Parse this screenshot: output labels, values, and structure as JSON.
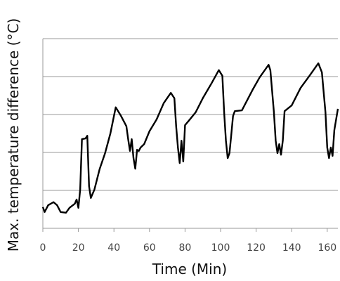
{
  "chart_data": {
    "type": "line",
    "xlabel": "Time (Min)",
    "ylabel": "Max. temperature difference (°C)",
    "x": [
      0,
      1,
      3,
      6,
      8,
      10,
      13,
      15,
      18,
      19,
      20,
      21,
      22,
      24,
      25,
      26,
      27,
      29,
      32,
      35,
      38,
      41,
      44,
      47,
      48,
      49,
      50,
      51,
      52,
      53,
      54,
      55,
      57,
      60,
      64,
      68,
      72,
      74,
      75,
      76,
      77,
      78,
      79,
      80,
      82,
      86,
      90,
      95,
      99,
      101,
      102,
      103,
      104,
      105,
      106,
      107,
      108,
      112,
      118,
      122,
      127,
      128,
      130,
      131,
      132,
      133,
      134,
      135,
      136,
      140,
      145,
      150,
      155,
      157,
      159,
      160,
      161,
      162,
      163,
      164,
      166
    ],
    "series": [
      {
        "color": "#000000",
        "values": [
          0.56,
          0.43,
          0.61,
          0.69,
          0.61,
          0.43,
          0.41,
          0.54,
          0.65,
          0.76,
          0.54,
          1.02,
          2.35,
          2.37,
          2.44,
          1.11,
          0.8,
          1.02,
          1.57,
          1.98,
          2.5,
          3.19,
          2.96,
          2.69,
          2.35,
          2.04,
          2.35,
          1.85,
          1.57,
          2.07,
          2.04,
          2.13,
          2.22,
          2.56,
          2.87,
          3.3,
          3.57,
          3.43,
          2.69,
          2.13,
          1.72,
          2.31,
          1.76,
          2.72,
          2.83,
          3.06,
          3.43,
          3.83,
          4.17,
          4.02,
          3.06,
          2.31,
          1.85,
          1.98,
          2.46,
          2.96,
          3.09,
          3.11,
          3.65,
          3.98,
          4.31,
          4.17,
          3.06,
          2.31,
          1.98,
          2.22,
          1.94,
          2.31,
          3.09,
          3.24,
          3.7,
          4.02,
          4.35,
          4.11,
          3.06,
          2.13,
          1.85,
          2.13,
          1.91,
          2.59,
          3.15
        ]
      }
    ],
    "xlim": [
      0,
      166
    ],
    "xticks": [
      0,
      20,
      40,
      60,
      80,
      100,
      120,
      140,
      160
    ],
    "ylim": [
      0,
      5
    ],
    "ygrid": [
      1,
      2,
      3,
      4,
      5
    ],
    "grid": true
  }
}
